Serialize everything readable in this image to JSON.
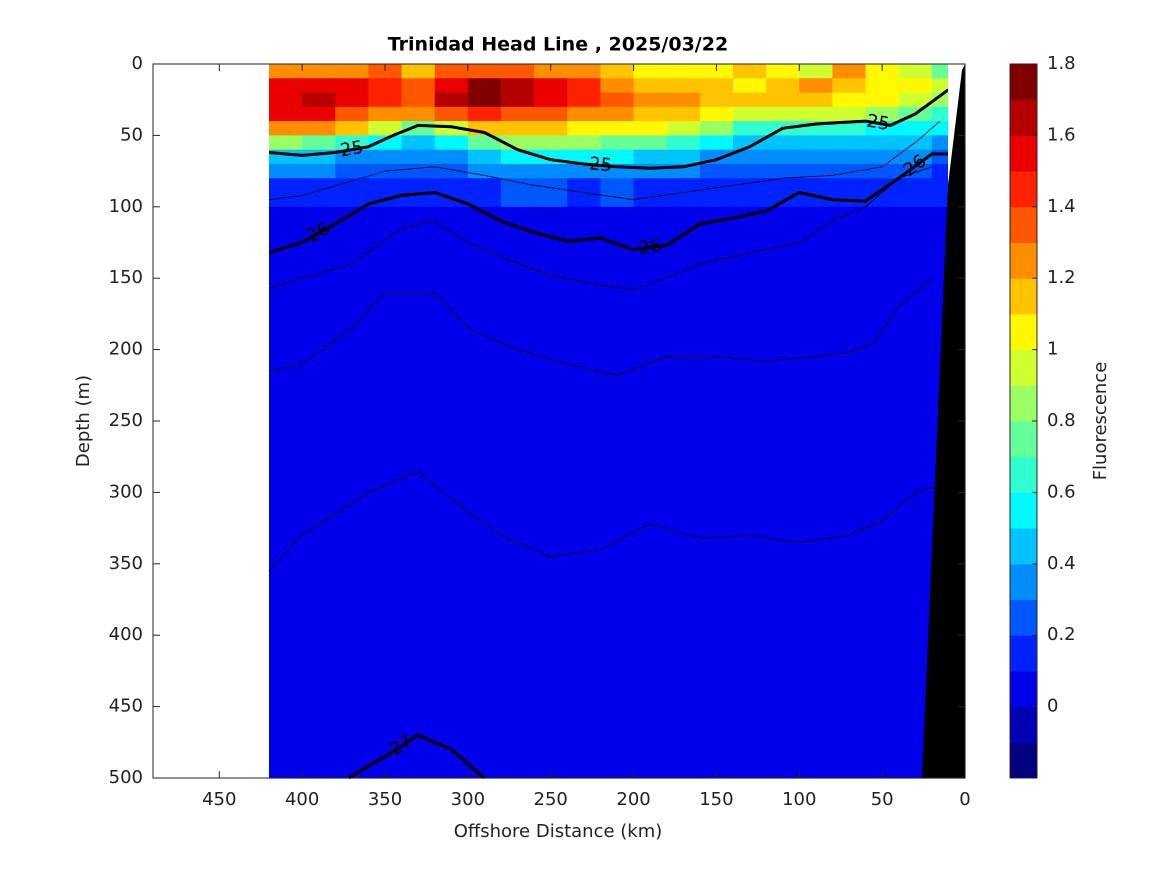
{
  "chart_data": {
    "type": "contour",
    "title": "Trinidad Head Line , 2025/03/22",
    "x_label": "Offshore Distance (km)",
    "y_label": "Depth (m)",
    "colorbar_label": "Fluorescence",
    "xlim": [
      490,
      0
    ],
    "xticks": [
      450,
      400,
      350,
      300,
      250,
      200,
      150,
      100,
      50,
      0
    ],
    "ylim": [
      0,
      500
    ],
    "y_direction": "reverse",
    "yticks": [
      0,
      50,
      100,
      150,
      200,
      250,
      300,
      350,
      400,
      450,
      500
    ],
    "clim": [
      -0.2,
      1.8
    ],
    "clevels": [
      -0.2,
      -0.1,
      0,
      0.1,
      0.2,
      0.3,
      0.4,
      0.5,
      0.6,
      0.7,
      0.8,
      0.9,
      1,
      1.1,
      1.2,
      1.3,
      1.4,
      1.5,
      1.6,
      1.7,
      1.8
    ],
    "cticks": [
      0,
      0.2,
      0.4,
      0.6,
      0.8,
      1,
      1.2,
      1.4,
      1.6,
      1.8
    ],
    "colormap": "jet",
    "x_edges": [
      420,
      400,
      380,
      360,
      340,
      320,
      300,
      280,
      260,
      240,
      220,
      200,
      180,
      160,
      140,
      120,
      100,
      80,
      60,
      40,
      20,
      0
    ],
    "depth_edges": [
      0,
      10,
      20,
      30,
      40,
      50,
      60,
      70,
      80,
      100,
      500
    ],
    "z": [
      [
        1.2,
        1.2,
        1.2,
        1.3,
        1.1,
        1.3,
        1.3,
        1.3,
        1.2,
        1.2,
        1.1,
        1.0,
        1.0,
        1.0,
        1.1,
        1.0,
        0.9,
        1.2,
        1.0,
        0.9,
        0.7
      ],
      [
        1.5,
        1.5,
        1.5,
        1.4,
        1.3,
        1.5,
        1.7,
        1.6,
        1.5,
        1.4,
        1.2,
        1.1,
        1.1,
        1.1,
        1.0,
        1.1,
        1.2,
        1.1,
        1.0,
        1.0,
        0.9
      ],
      [
        1.5,
        1.6,
        1.5,
        1.4,
        1.3,
        1.6,
        1.7,
        1.6,
        1.5,
        1.4,
        1.3,
        1.2,
        1.2,
        1.1,
        1.1,
        1.1,
        1.1,
        1.0,
        1.0,
        0.9,
        0.8
      ],
      [
        1.5,
        1.5,
        1.3,
        1.2,
        1.2,
        1.3,
        1.4,
        1.3,
        1.3,
        1.2,
        1.2,
        1.1,
        1.1,
        1.0,
        0.9,
        0.9,
        0.9,
        0.9,
        0.8,
        0.7,
        0.6
      ],
      [
        1.2,
        1.2,
        1.1,
        0.9,
        0.7,
        0.9,
        1.1,
        1.1,
        1.1,
        1.0,
        1.0,
        1.0,
        0.9,
        0.8,
        0.6,
        0.6,
        0.6,
        0.6,
        0.5,
        0.5,
        0.5
      ],
      [
        0.8,
        0.7,
        0.6,
        0.5,
        0.4,
        0.5,
        0.7,
        0.8,
        0.8,
        0.8,
        0.7,
        0.7,
        0.6,
        0.5,
        0.4,
        0.4,
        0.4,
        0.4,
        0.4,
        0.4,
        0.3
      ],
      [
        0.4,
        0.4,
        0.3,
        0.3,
        0.3,
        0.3,
        0.4,
        0.5,
        0.5,
        0.5,
        0.5,
        0.4,
        0.4,
        0.3,
        0.3,
        0.3,
        0.3,
        0.3,
        0.3,
        0.3,
        0.2
      ],
      [
        0.3,
        0.3,
        0.2,
        0.2,
        0.2,
        0.2,
        0.3,
        0.3,
        0.3,
        0.3,
        0.3,
        0.3,
        0.3,
        0.2,
        0.2,
        0.2,
        0.2,
        0.2,
        0.2,
        0.2,
        0.1
      ],
      [
        0.1,
        0.1,
        0.1,
        0.1,
        0.1,
        0.1,
        0.1,
        0.2,
        0.2,
        0.1,
        0.2,
        0.1,
        0.1,
        0.1,
        0.1,
        0.1,
        0.1,
        0.1,
        0.1,
        0.1,
        0.1
      ],
      [
        0.05,
        0.05,
        0.05,
        0.05,
        0.05,
        0.05,
        0.05,
        0.05,
        0.05,
        0.05,
        0.05,
        0.05,
        0.05,
        0.05,
        0.05,
        0.05,
        0.05,
        0.05,
        0.05,
        0.05,
        0.05
      ]
    ],
    "contours": [
      {
        "level": 25,
        "x": [
          420,
          400,
          380,
          360,
          345,
          330,
          310,
          290,
          270,
          250,
          230,
          210,
          190,
          170,
          150,
          130,
          110,
          90,
          75,
          60,
          45,
          30,
          10
        ],
        "depth": [
          62,
          64,
          62,
          58,
          50,
          43,
          44,
          48,
          60,
          67,
          70,
          72,
          73,
          72,
          67,
          58,
          45,
          42,
          41,
          40,
          43,
          35,
          18
        ]
      },
      {
        "level": 26,
        "x": [
          420,
          400,
          380,
          360,
          340,
          320,
          300,
          280,
          260,
          240,
          220,
          200,
          180,
          160,
          140,
          120,
          100,
          80,
          60,
          40,
          20,
          10
        ],
        "depth": [
          132,
          125,
          112,
          98,
          92,
          90,
          98,
          110,
          118,
          124,
          122,
          130,
          127,
          112,
          108,
          103,
          90,
          95,
          96,
          80,
          63,
          63
        ]
      },
      {
        "level": 27,
        "x": [
          372,
          350,
          330,
          310,
          290
        ],
        "depth": [
          500,
          485,
          470,
          480,
          500
        ]
      }
    ],
    "thin_contours": [
      {
        "x": [
          420,
          400,
          370,
          350,
          320,
          290,
          260,
          230,
          200,
          170,
          140,
          110,
          80,
          50,
          30,
          15
        ],
        "depth": [
          95,
          92,
          82,
          75,
          72,
          78,
          85,
          90,
          95,
          90,
          85,
          80,
          78,
          72,
          55,
          40
        ]
      },
      {
        "x": [
          420,
          400,
          370,
          340,
          320,
          300,
          280,
          250,
          220,
          200,
          180,
          160,
          140,
          120,
          100,
          80,
          60,
          40,
          20
        ],
        "depth": [
          157,
          150,
          140,
          115,
          110,
          125,
          135,
          148,
          155,
          158,
          150,
          140,
          135,
          130,
          125,
          110,
          100,
          80,
          72
        ]
      },
      {
        "x": [
          420,
          400,
          370,
          350,
          320,
          300,
          270,
          240,
          210,
          180,
          150,
          120,
          90,
          70,
          55,
          40,
          20
        ],
        "depth": [
          215,
          210,
          185,
          160,
          160,
          185,
          200,
          210,
          218,
          205,
          205,
          208,
          205,
          202,
          195,
          170,
          150
        ]
      },
      {
        "x": [
          420,
          400,
          360,
          330,
          310,
          280,
          250,
          220,
          190,
          160,
          130,
          100,
          70,
          50,
          30,
          15
        ],
        "depth": [
          355,
          330,
          300,
          285,
          305,
          330,
          345,
          340,
          322,
          332,
          330,
          335,
          330,
          320,
          300,
          295
        ]
      }
    ]
  }
}
